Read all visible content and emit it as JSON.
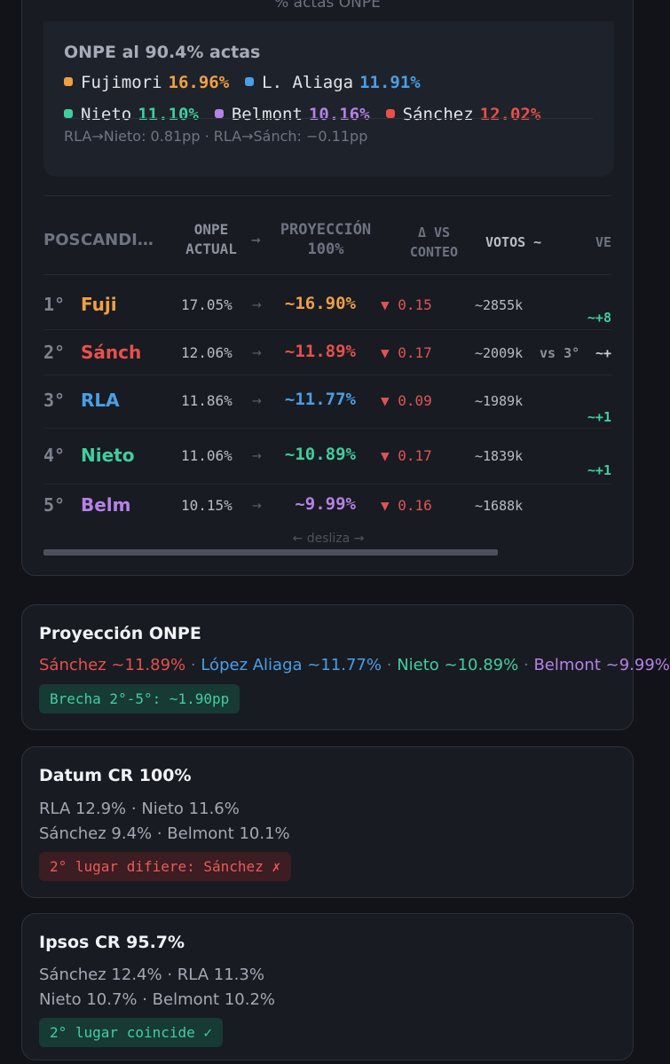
{
  "colors": {
    "fujimori": "#f0a043",
    "aliaga": "#4a9fe6",
    "nieto": "#3fcf9f",
    "belmont": "#b582e6",
    "sanchez": "#e8504c"
  },
  "top_card": {
    "faded_title": "% actas ONPE",
    "summary": {
      "title": "ONPE al 90.4% actas",
      "legend": [
        {
          "name": "Fujimori",
          "value": "16.96%",
          "color": "#f0a043"
        },
        {
          "name": "L. Aliaga",
          "value": "11.91%",
          "color": "#4a9fe6"
        },
        {
          "name": "Nieto",
          "value": "11.10%",
          "color": "#3fcf9f"
        },
        {
          "name": "Belmont",
          "value": "10.16%",
          "color": "#b582e6"
        },
        {
          "name": "Sánchez",
          "value": "12.02%",
          "color": "#e8504c"
        }
      ],
      "note": "RLA→Nieto: 0.81pp · RLA→Sánch: −0.11pp"
    },
    "table": {
      "headers": {
        "pos": "POS",
        "candidate": "CANDI…",
        "onpe_line1": "ONPE",
        "onpe_line2": "ACTUAL",
        "arrow": "→",
        "proj_line1": "PROYECCIÓN",
        "proj_line2": "100%",
        "delta_line1": "Δ VS",
        "delta_line2": "CONTEO",
        "votos": "VOTOS ~",
        "ve": "VE"
      },
      "rows": [
        {
          "pos": "1°",
          "candidate": "Fuji",
          "actual": "17.05%",
          "arrow": "→",
          "proj": "~16.90%",
          "delta": "▼ 0.15",
          "votos": "~2855k",
          "vs": "",
          "ve": "~+8",
          "color": "#f0a043"
        },
        {
          "pos": "2°",
          "candidate": "Sánch",
          "actual": "12.06%",
          "arrow": "→",
          "proj": "~11.89%",
          "delta": "▼ 0.17",
          "votos": "~2009k",
          "vs": "vs 3°",
          "ve": "~+",
          "color": "#e8504c"
        },
        {
          "pos": "3°",
          "candidate": "RLA",
          "actual": "11.86%",
          "arrow": "→",
          "proj": "~11.77%",
          "delta": "▼ 0.09",
          "votos": "~1989k",
          "vs": "",
          "ve": "~+1",
          "color": "#4a9fe6"
        },
        {
          "pos": "4°",
          "candidate": "Nieto",
          "actual": "11.06%",
          "arrow": "→",
          "proj": "~10.89%",
          "delta": "▼ 0.17",
          "votos": "~1839k",
          "vs": "",
          "ve": "~+1",
          "color": "#3fcf9f"
        },
        {
          "pos": "5°",
          "candidate": "Belm",
          "actual": "10.15%",
          "arrow": "→",
          "proj": "~9.99%",
          "delta": "▼ 0.16",
          "votos": "~1688k",
          "vs": "",
          "ve": "",
          "color": "#b582e6"
        }
      ],
      "scroll_hint": "← desliza →"
    }
  },
  "proyeccion_card": {
    "title": "Proyección ONPE",
    "items": [
      {
        "text": "Sánchez ~11.89%",
        "color": "#e8504c"
      },
      {
        "text": "López Aliaga ~11.77%",
        "color": "#4a9fe6"
      },
      {
        "text": "Nieto ~10.89%",
        "color": "#3fcf9f"
      },
      {
        "text": "Belmont ~9.99%",
        "color": "#b582e6"
      }
    ],
    "separator": "·",
    "badge": "Brecha 2°-5°: ~1.90pp"
  },
  "datum_card": {
    "title": "Datum CR 100%",
    "line1": "RLA 12.9% · Nieto 11.6%",
    "line2": "Sánchez 9.4% · Belmont 10.1%",
    "badge": "2° lugar difiere: Sánchez ✗"
  },
  "ipsos_card": {
    "title": "Ipsos CR 95.7%",
    "line1": "Sánchez 12.4% · RLA 11.3%",
    "line2": "Nieto 10.7% · Belmont 10.2%",
    "badge": "2° lugar coincide ✓"
  }
}
